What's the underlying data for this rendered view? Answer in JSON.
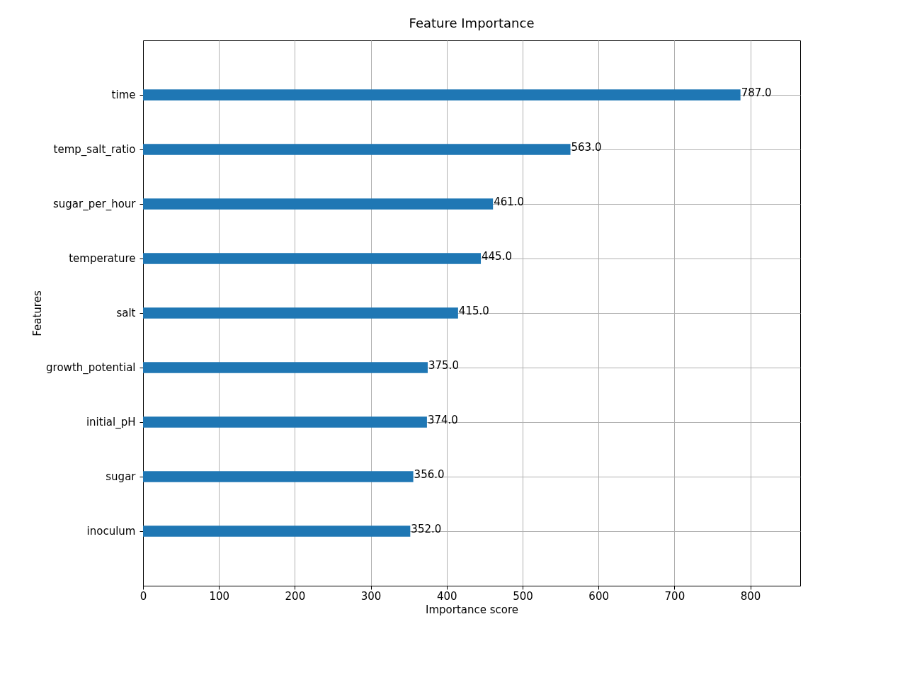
{
  "chart_data": {
    "type": "bar",
    "orientation": "horizontal",
    "title": "Feature Importance",
    "xlabel": "Importance score",
    "ylabel": "Features",
    "categories": [
      "time",
      "temp_salt_ratio",
      "sugar_per_hour",
      "temperature",
      "salt",
      "growth_potential",
      "initial_pH",
      "sugar",
      "inoculum"
    ],
    "values": [
      787,
      563,
      461,
      445,
      415,
      375,
      374,
      356,
      352
    ],
    "value_labels": [
      "787.0",
      "563.0",
      "461.0",
      "445.0",
      "415.0",
      "375.0",
      "374.0",
      "356.0",
      "352.0"
    ],
    "color": "#1f77b4",
    "xlim": [
      0,
      865.7
    ],
    "xticks": [
      0,
      100,
      200,
      300,
      400,
      500,
      600,
      700,
      800
    ],
    "grid": true
  }
}
